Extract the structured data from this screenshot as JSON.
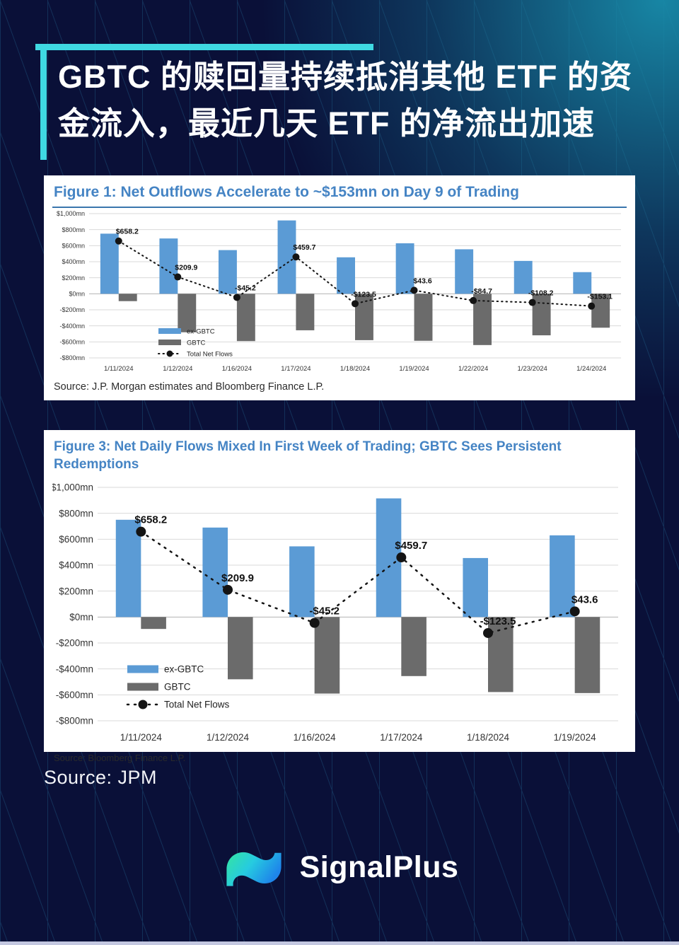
{
  "page": {
    "title_line1": "GBTC 的赎回量持续抵消其他 ETF 的资",
    "title_line2": "金流入，最近几天 ETF 的净流出加速",
    "source_note": "Source: JPM",
    "brand": "SignalPlus",
    "brand_icon": "wave-logo-icon",
    "colors": {
      "background": "#0a1038",
      "accent_teal": "#3fd9e2",
      "figure_title_blue": "#4584c4",
      "bar_blue": "#5b9bd5",
      "bar_gray": "#6b6b6b",
      "line_black": "#141414",
      "panel_bg": "#ffffff"
    }
  },
  "charts": [
    {
      "figure_title": "Figure 1: Net Outflows Accelerate to ~$153mn on Day 9 of Trading",
      "source": "Source: J.P. Morgan estimates and Bloomberg Finance L.P.",
      "chart_data": {
        "type": "bar",
        "subtype": "bar+line",
        "categories": [
          "1/11/2024",
          "1/12/2024",
          "1/16/2024",
          "1/17/2024",
          "1/18/2024",
          "1/19/2024",
          "1/22/2024",
          "1/23/2024",
          "1/24/2024"
        ],
        "series": [
          {
            "name": "ex-GBTC",
            "type": "bar",
            "color": "#5b9bd5",
            "values": [
              750,
              690,
              545,
              915,
              455,
              630,
              555,
              410,
              270
            ]
          },
          {
            "name": "GBTC",
            "type": "bar",
            "color": "#6b6b6b",
            "values": [
              -91.8,
              -480.1,
              -590.2,
              -455.3,
              -578.5,
              -586.4,
              -639.7,
              -518.2,
              -423.1
            ]
          },
          {
            "name": "Total Net Flows",
            "type": "line",
            "color": "#141414",
            "values": [
              658.2,
              209.9,
              -45.2,
              459.7,
              -123.5,
              43.6,
              -84.7,
              -108.2,
              -153.1
            ],
            "labels": [
              "$658.2",
              "$209.9",
              "-$45.2",
              "$459.7",
              "-$123.5",
              "$43.6",
              "-$84.7",
              "-$108.2",
              "-$153.1"
            ]
          }
        ],
        "ylim": [
          -800,
          1000
        ],
        "ytick_step": 200,
        "ytick_labels": [
          "$1,000mn",
          "$800mn",
          "$600mn",
          "$400mn",
          "$200mn",
          "$0mn",
          "-$200mn",
          "-$400mn",
          "-$600mn",
          "-$800mn"
        ],
        "grid": true,
        "legend": [
          "ex-GBTC",
          "GBTC",
          "Total Net Flows"
        ],
        "legend_position": "inside-left",
        "ylabel": "",
        "xlabel": ""
      }
    },
    {
      "figure_title": "Figure 3: Net Daily Flows Mixed In First Week of Trading; GBTC Sees Persistent Redemptions",
      "source": "Source: Bloomberg Finance L.P.",
      "chart_data": {
        "type": "bar",
        "subtype": "bar+line",
        "categories": [
          "1/11/2024",
          "1/12/2024",
          "1/16/2024",
          "1/17/2024",
          "1/18/2024",
          "1/19/2024"
        ],
        "series": [
          {
            "name": "ex-GBTC",
            "type": "bar",
            "color": "#5b9bd5",
            "values": [
              750,
              690,
              545,
              915,
              455,
              630
            ]
          },
          {
            "name": "GBTC",
            "type": "bar",
            "color": "#6b6b6b",
            "values": [
              -91.8,
              -480.1,
              -590.2,
              -455.3,
              -578.5,
              -586.4
            ]
          },
          {
            "name": "Total Net Flows",
            "type": "line",
            "color": "#141414",
            "values": [
              658.2,
              209.9,
              -45.2,
              459.7,
              -123.5,
              43.6
            ],
            "labels": [
              "$658.2",
              "$209.9",
              "-$45.2",
              "$459.7",
              "-$123.5",
              "$43.6"
            ]
          }
        ],
        "ylim": [
          -800,
          1000
        ],
        "ytick_step": 200,
        "ytick_labels": [
          "$1,000mn",
          "$800mn",
          "$600mn",
          "$400mn",
          "$200mn",
          "$0mn",
          "-$200mn",
          "-$400mn",
          "-$600mn",
          "-$800mn"
        ],
        "grid": true,
        "legend": [
          "ex-GBTC",
          "GBTC",
          "Total Net Flows"
        ],
        "legend_position": "inside-left",
        "ylabel": "",
        "xlabel": ""
      }
    }
  ]
}
